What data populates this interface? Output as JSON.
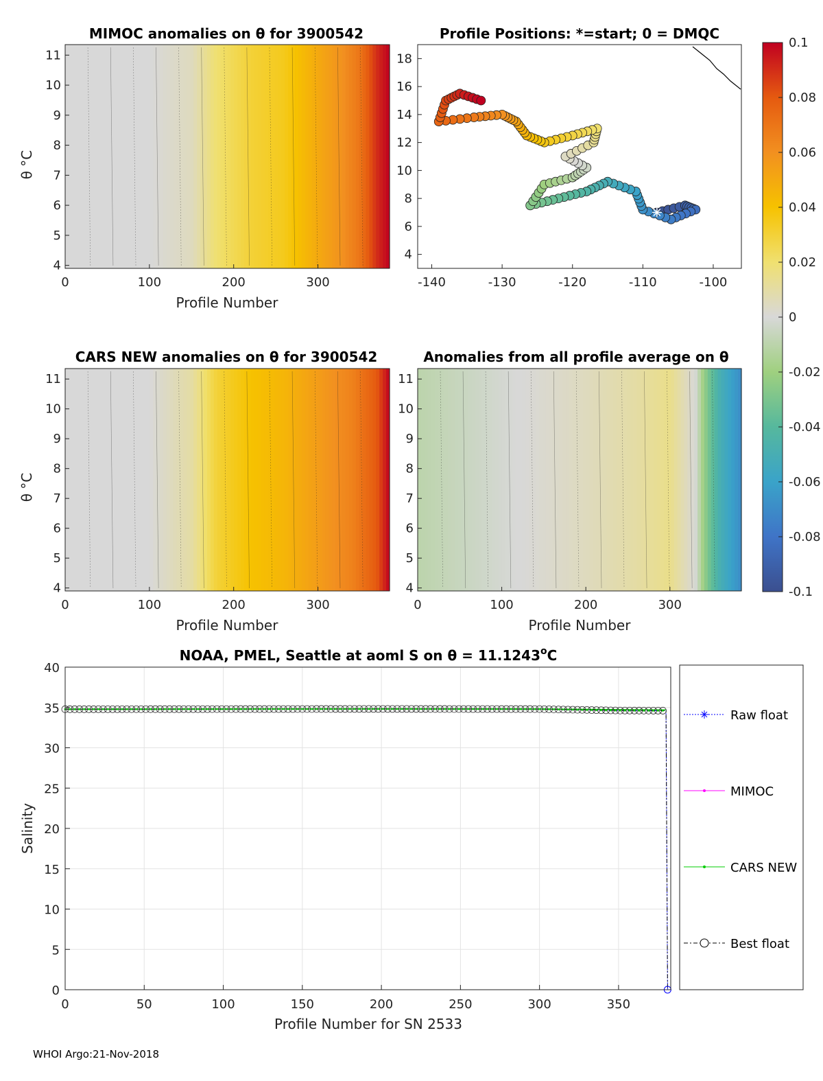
{
  "footer": "WHOI Argo:21-Nov-2018",
  "colors": {
    "raw_float": "#0000ff",
    "mimoc": "#ff00ff",
    "cars_new": "#00cc00",
    "best_float": "#000000",
    "anomaly_colormap": [
      "#3b4f8f",
      "#3f74c7",
      "#3aa3c9",
      "#56b89d",
      "#9fd07f",
      "#d8d8d8",
      "#f0e070",
      "#f6c200",
      "#f29020",
      "#e55a10",
      "#c00020"
    ]
  },
  "colorbar": {
    "range": [
      -0.1,
      0.1
    ],
    "tick_labels": [
      "0.1",
      "0.08",
      "0.06",
      "0.04",
      "0.02",
      "0",
      "-0.02",
      "-0.04",
      "-0.06",
      "-0.08",
      "-0.1"
    ]
  },
  "panels": {
    "mimoc": {
      "title": "MIMOC anomalies on θ  for 3900542",
      "xlabel": "Profile Number",
      "ylabel": "θ °C"
    },
    "positions": {
      "title": "Profile Positions: *=start; 0 = DMQC"
    },
    "cars": {
      "title": "CARS NEW anomalies on θ for 3900542",
      "xlabel": "Profile Number",
      "ylabel": "θ °C"
    },
    "allprof": {
      "title": "Anomalies from all profile average on θ",
      "xlabel": "Profile Number"
    },
    "salinity": {
      "title_prefix": "NOAA, PMEL, Seattle at aoml S on θ = 11.1243",
      "title_sup": "o",
      "title_suffix": "C",
      "xlabel": "Profile Number for SN 2533",
      "ylabel": "Salinity"
    }
  },
  "chart_data": [
    {
      "type": "heatmap",
      "title": "MIMOC anomalies on θ  for 3900542",
      "xlabel": "Profile Number",
      "ylabel": "θ °C",
      "xlim": [
        0,
        385
      ],
      "ylim": [
        3.9,
        11.35
      ],
      "x_ticks": [
        0,
        100,
        200,
        300
      ],
      "y_ticks": [
        4,
        5,
        6,
        7,
        8,
        9,
        10,
        11
      ],
      "anomaly_by_profile": [
        {
          "x": 0,
          "value": 0.0
        },
        {
          "x": 100,
          "value": 0.0
        },
        {
          "x": 150,
          "value": 0.005
        },
        {
          "x": 180,
          "value": 0.02
        },
        {
          "x": 220,
          "value": 0.03
        },
        {
          "x": 260,
          "value": 0.035
        },
        {
          "x": 300,
          "value": 0.05
        },
        {
          "x": 330,
          "value": 0.06
        },
        {
          "x": 350,
          "value": 0.07
        },
        {
          "x": 370,
          "value": 0.09
        },
        {
          "x": 385,
          "value": 0.1
        }
      ]
    },
    {
      "type": "scatter",
      "title": "Profile Positions: *=start; 0 = DMQC",
      "xlim": [
        -142,
        -96
      ],
      "ylim": [
        3,
        19
      ],
      "x_ticks": [
        -140,
        -130,
        -120,
        -110,
        -100
      ],
      "y_ticks": [
        4,
        6,
        8,
        10,
        12,
        14,
        16,
        18
      ],
      "start": {
        "lon": -108,
        "lat": 7
      },
      "track": [
        {
          "lon": -108,
          "lat": 7
        },
        {
          "lon": -104,
          "lat": 7.5
        },
        {
          "lon": -102.5,
          "lat": 7.2
        },
        {
          "lon": -106,
          "lat": 6.5
        },
        {
          "lon": -110,
          "lat": 7.2
        },
        {
          "lon": -111,
          "lat": 8.5
        },
        {
          "lon": -115,
          "lat": 9.2
        },
        {
          "lon": -118,
          "lat": 8.5
        },
        {
          "lon": -122,
          "lat": 8.0
        },
        {
          "lon": -126,
          "lat": 7.5
        },
        {
          "lon": -124,
          "lat": 9.0
        },
        {
          "lon": -120,
          "lat": 9.5
        },
        {
          "lon": -118,
          "lat": 10.2
        },
        {
          "lon": -121,
          "lat": 11.0
        },
        {
          "lon": -117,
          "lat": 12.0
        },
        {
          "lon": -116.5,
          "lat": 13.0
        },
        {
          "lon": -120,
          "lat": 12.5
        },
        {
          "lon": -124,
          "lat": 12.0
        },
        {
          "lon": -126.5,
          "lat": 12.5
        },
        {
          "lon": -128,
          "lat": 13.5
        },
        {
          "lon": -130,
          "lat": 14.0
        },
        {
          "lon": -134,
          "lat": 13.8
        },
        {
          "lon": -139,
          "lat": 13.5
        },
        {
          "lon": -138,
          "lat": 15.0
        },
        {
          "lon": -136,
          "lat": 15.5
        },
        {
          "lon": -133,
          "lat": 15.0
        }
      ]
    },
    {
      "type": "heatmap",
      "title": "CARS NEW anomalies on θ for 3900542",
      "xlabel": "Profile Number",
      "ylabel": "θ °C",
      "xlim": [
        0,
        385
      ],
      "ylim": [
        3.9,
        11.35
      ],
      "x_ticks": [
        0,
        100,
        200,
        300
      ],
      "y_ticks": [
        4,
        5,
        6,
        7,
        8,
        9,
        10,
        11
      ],
      "anomaly_by_profile": [
        {
          "x": 0,
          "value": 0.0
        },
        {
          "x": 100,
          "value": 0.0
        },
        {
          "x": 150,
          "value": 0.01
        },
        {
          "x": 180,
          "value": 0.03
        },
        {
          "x": 220,
          "value": 0.04
        },
        {
          "x": 260,
          "value": 0.045
        },
        {
          "x": 300,
          "value": 0.055
        },
        {
          "x": 340,
          "value": 0.065
        },
        {
          "x": 370,
          "value": 0.08
        },
        {
          "x": 385,
          "value": 0.1
        }
      ]
    },
    {
      "type": "heatmap",
      "title": "Anomalies from all profile average on θ",
      "xlabel": "Profile Number",
      "xlim": [
        0,
        385
      ],
      "ylim": [
        3.9,
        11.35
      ],
      "x_ticks": [
        0,
        100,
        200,
        300
      ],
      "y_ticks": [
        4,
        5,
        6,
        7,
        8,
        9,
        10,
        11
      ],
      "anomaly_by_profile": [
        {
          "x": 0,
          "value": -0.01
        },
        {
          "x": 60,
          "value": -0.005
        },
        {
          "x": 120,
          "value": 0.0
        },
        {
          "x": 200,
          "value": 0.005
        },
        {
          "x": 260,
          "value": 0.01
        },
        {
          "x": 300,
          "value": 0.015
        },
        {
          "x": 330,
          "value": 0.0
        },
        {
          "x": 345,
          "value": -0.03
        },
        {
          "x": 360,
          "value": -0.05
        },
        {
          "x": 385,
          "value": -0.07
        }
      ]
    },
    {
      "type": "line",
      "title": "NOAA, PMEL, Seattle at aoml S on θ = 11.1243°C",
      "xlabel": "Profile Number for SN 2533",
      "ylabel": "Salinity",
      "xlim": [
        0,
        383
      ],
      "ylim": [
        0,
        40
      ],
      "x_ticks": [
        0,
        50,
        100,
        150,
        200,
        250,
        300,
        350
      ],
      "y_ticks": [
        0,
        5,
        10,
        15,
        20,
        25,
        30,
        35,
        40
      ],
      "grid": true,
      "legend_position": "right",
      "series": [
        {
          "name": "Raw float",
          "points": [
            [
              0,
              34.78
            ],
            [
              100,
              34.8
            ],
            [
              200,
              34.82
            ],
            [
              300,
              34.8
            ],
            [
              350,
              34.62
            ],
            [
              380,
              34.6
            ],
            [
              381,
              0
            ]
          ]
        },
        {
          "name": "MIMOC",
          "points": [
            [
              0,
              34.79
            ],
            [
              100,
              34.81
            ],
            [
              200,
              34.82
            ],
            [
              300,
              34.81
            ],
            [
              380,
              34.7
            ]
          ]
        },
        {
          "name": "CARS NEW",
          "points": [
            [
              0,
              34.79
            ],
            [
              100,
              34.81
            ],
            [
              200,
              34.82
            ],
            [
              300,
              34.81
            ],
            [
              380,
              34.7
            ]
          ]
        },
        {
          "name": "Best float",
          "points": [
            [
              0,
              34.78
            ],
            [
              100,
              34.8
            ],
            [
              200,
              34.82
            ],
            [
              300,
              34.8
            ],
            [
              350,
              34.62
            ],
            [
              380,
              34.6
            ],
            [
              381,
              0
            ]
          ]
        }
      ]
    }
  ]
}
